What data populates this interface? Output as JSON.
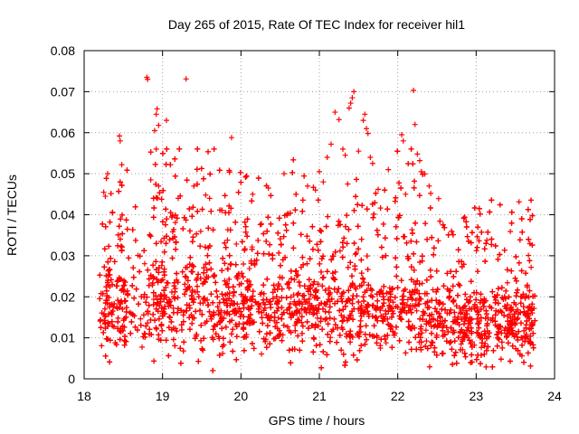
{
  "chart_data": {
    "type": "scatter",
    "title": "Day 265 of 2015, Rate Of TEC Index for receiver hil1",
    "xlabel": "GPS time / hours",
    "ylabel": "ROTI / TECUs",
    "xlim": [
      18,
      24
    ],
    "ylim": [
      0,
      0.08
    ],
    "xticks": [
      18,
      19,
      20,
      21,
      22,
      23,
      24
    ],
    "xtick_labels": [
      "18",
      "19",
      "20",
      "21",
      "22",
      "23",
      "24"
    ],
    "yticks": [
      0,
      0.01,
      0.02,
      0.03,
      0.04,
      0.05,
      0.06,
      0.07,
      0.08
    ],
    "ytick_labels": [
      "0",
      "0.01",
      "0.02",
      "0.03",
      "0.04",
      "0.05",
      "0.06",
      "0.07",
      "0.08"
    ],
    "grid": true,
    "marker": "+",
    "marker_color": "#ff0000",
    "series": [
      {
        "name": "ROTI",
        "points": [
          [
            18.8,
            0.0735
          ],
          [
            18.81,
            0.073
          ],
          [
            19.3,
            0.0731
          ],
          [
            22.2,
            0.0703
          ],
          [
            21.44,
            0.07
          ],
          [
            21.42,
            0.0685
          ],
          [
            21.4,
            0.0672
          ],
          [
            21.38,
            0.066
          ],
          [
            21.58,
            0.0645
          ],
          [
            21.56,
            0.063
          ],
          [
            21.2,
            0.065
          ],
          [
            21.25,
            0.0632
          ],
          [
            21.6,
            0.061
          ],
          [
            21.62,
            0.0598
          ],
          [
            18.93,
            0.0658
          ],
          [
            18.92,
            0.0645
          ],
          [
            19.05,
            0.063
          ],
          [
            18.95,
            0.0618
          ],
          [
            18.9,
            0.0605
          ],
          [
            22.22,
            0.062
          ],
          [
            18.45,
            0.0592
          ],
          [
            18.46,
            0.058
          ],
          [
            19.88,
            0.0588
          ],
          [
            18.92,
            0.056
          ],
          [
            22.05,
            0.0595
          ],
          [
            22.07,
            0.058
          ],
          [
            22.25,
            0.0548
          ],
          [
            22.28,
            0.0532
          ],
          [
            21.15,
            0.0572
          ],
          [
            21.3,
            0.056
          ],
          [
            21.33,
            0.0545
          ],
          [
            21.1,
            0.054
          ],
          [
            21.5,
            0.0555
          ],
          [
            21.65,
            0.054
          ],
          [
            21.68,
            0.0525
          ],
          [
            18.48,
            0.0522
          ],
          [
            18.3,
            0.05
          ],
          [
            19.85,
            0.0508
          ],
          [
            21.88,
            0.051
          ],
          [
            22.3,
            0.0505
          ],
          [
            21.0,
            0.0505
          ],
          [
            20.55,
            0.05
          ],
          [
            22.4,
            0.047
          ],
          [
            22.42,
            0.0452
          ],
          [
            18.25,
            0.0455
          ],
          [
            18.27,
            0.0445
          ],
          [
            18.85,
            0.0485
          ],
          [
            18.95,
            0.047
          ],
          [
            19.55,
            0.0448
          ],
          [
            19.6,
            0.044
          ],
          [
            20.15,
            0.045
          ],
          [
            20.35,
            0.0465
          ],
          [
            20.85,
            0.047
          ],
          [
            20.95,
            0.046
          ],
          [
            21.05,
            0.048
          ],
          [
            21.75,
            0.0462
          ],
          [
            22.1,
            0.045
          ],
          [
            19.4,
            0.047
          ],
          [
            19.2,
            0.044
          ]
        ],
        "generated_cloud": {
          "x_start": 18.2,
          "x_end": 23.75,
          "count": 5200,
          "segments": [
            {
              "from": 18.2,
              "to": 18.8,
              "center": 0.018,
              "spread": 0.011
            },
            {
              "from": 18.8,
              "to": 19.9,
              "center": 0.02,
              "spread": 0.012
            },
            {
              "from": 19.9,
              "to": 21.0,
              "center": 0.018,
              "spread": 0.01
            },
            {
              "from": 21.0,
              "to": 22.4,
              "center": 0.017,
              "spread": 0.011
            },
            {
              "from": 22.4,
              "to": 23.75,
              "center": 0.014,
              "spread": 0.009
            }
          ],
          "gap": [
            18.55,
            18.75
          ]
        }
      }
    ]
  }
}
